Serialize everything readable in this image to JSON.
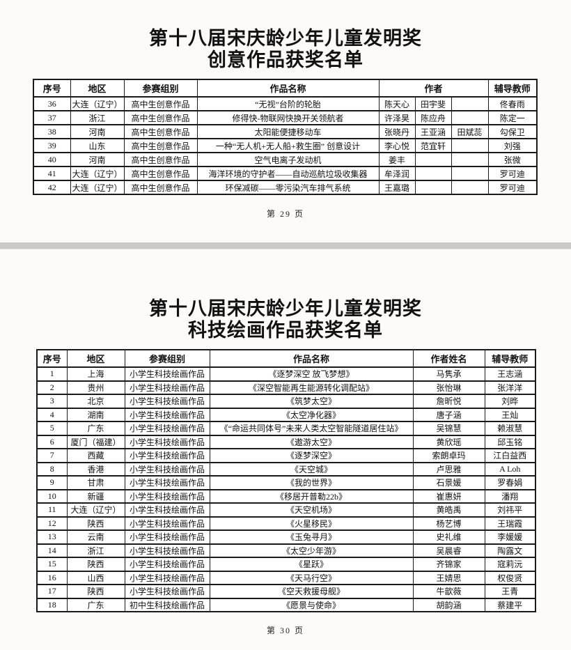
{
  "colors": {
    "page_background": "#fbfaf8",
    "divider": "#c9c9c9",
    "table_border": "#1a1a1a",
    "text": "#111111"
  },
  "page1": {
    "title_line1": "第十八届宋庆龄少年儿童发明奖",
    "title_line2": "创意作品获奖名单",
    "footer": "第 29 页",
    "table": {
      "headers": {
        "index": "序号",
        "region": "地区",
        "group": "参赛组别",
        "work": "作品名称",
        "authors": "作者",
        "teacher": "辅导教师"
      },
      "rows": [
        [
          "36",
          "大连（辽宁）",
          "高中生创意作品",
          "“无视”台阶的轮胎",
          "陈天心",
          "田宇斐",
          "",
          "佟春雨"
        ],
        [
          "37",
          "浙江",
          "高中生创意作品",
          "修得快-物联网快换开关领航者",
          "许泽昊",
          "陈应舟",
          "",
          "陈定一"
        ],
        [
          "38",
          "河南",
          "高中生创意作品",
          "太阳能便捷移动车",
          "张晓丹",
          "王亚涵",
          "田斌蕊",
          "勾保卫"
        ],
        [
          "39",
          "山东",
          "高中生创意作品",
          "一种“无人机+无人船+救生圈” 创意设计",
          "李心悦",
          "范宜轩",
          "",
          "刘强"
        ],
        [
          "40",
          "河南",
          "高中生创意作品",
          "空气电离子发动机",
          "姜丰",
          "",
          "",
          "张微"
        ],
        [
          "41",
          "大连（辽宁）",
          "高中生创意作品",
          "海洋环境的守护者——自动巡航垃圾收集器",
          "牟泽润",
          "",
          "",
          "罗可迪"
        ],
        [
          "42",
          "大连（辽宁）",
          "高中生创意作品",
          "环保减碳——零污染汽车排气系统",
          "王嘉璐",
          "",
          "",
          "罗可迪"
        ]
      ]
    }
  },
  "page2": {
    "title_line1": "第十八届宋庆龄少年儿童发明奖",
    "title_line2": "科技绘画作品获奖名单",
    "footer": "第 30 页",
    "table": {
      "headers": {
        "index": "序号",
        "region": "地区",
        "group": "参赛组别",
        "work": "作品名称",
        "author": "作者姓名",
        "teacher": "辅导教师"
      },
      "rows": [
        [
          "1",
          "上海",
          "小学生科技绘画作品",
          "《逐梦深空 放飞梦想》",
          "马隽承",
          "王志涵"
        ],
        [
          "2",
          "贵州",
          "小学生科技绘画作品",
          "《深空智能再生能源转化调配站》",
          "张怡琳",
          "张洋洋"
        ],
        [
          "3",
          "北京",
          "小学生科技绘画作品",
          "《筑梦太空》",
          "詹昕悦",
          "刘晔"
        ],
        [
          "4",
          "湖南",
          "小学生科技绘画作品",
          "《太空净化器》",
          "唐子涵",
          "王灿"
        ],
        [
          "5",
          "广东",
          "小学生科技绘画作品",
          "《“命运共同体号”未来人类太空智能隧道居住站》",
          "吴锦慧",
          "赖淑慧"
        ],
        [
          "6",
          "厦门（福建）",
          "小学生科技绘画作品",
          "《遨游太空》",
          "黄欣瑶",
          "邱玉铭"
        ],
        [
          "7",
          "西藏",
          "小学生科技绘画作品",
          "《逐梦深空》",
          "索朗卓玛",
          "江白益西"
        ],
        [
          "8",
          "香港",
          "小学生科技绘画作品",
          "《天空城》",
          "卢思雅",
          "A Loh"
        ],
        [
          "9",
          "甘肃",
          "小学生科技绘画作品",
          "《我的世界》",
          "石景媛",
          "罗春娟"
        ],
        [
          "10",
          "新疆",
          "小学生科技绘画作品",
          "《移居开普勒22b》",
          "崔惠妍",
          "潘翔"
        ],
        [
          "11",
          "大连（辽宁）",
          "小学生科技绘画作品",
          "《天空机场》",
          "黄皓禹",
          "刘祎平"
        ],
        [
          "12",
          "陕西",
          "小学生科技绘画作品",
          "《火星移民》",
          "杨艺博",
          "王瑞霞"
        ],
        [
          "13",
          "云南",
          "小学生科技绘画作品",
          "《玉兔寻月》",
          "史礼维",
          "李媛媛"
        ],
        [
          "14",
          "浙江",
          "小学生科技绘画作品",
          "《太空少年游》",
          "吴晨睿",
          "陶露文"
        ],
        [
          "15",
          "陕西",
          "小学生科技绘画作品",
          "《星跃》",
          "齐锦家",
          "寇莉沅"
        ],
        [
          "16",
          "山西",
          "小学生科技绘画作品",
          "《天马行空》",
          "王婧思",
          "权俊贤"
        ],
        [
          "17",
          "陕西",
          "小学生科技绘画作品",
          "《空天救援母舰》",
          "牛歆薇",
          "王青"
        ],
        [
          "18",
          "广东",
          "初中生科技绘画作品",
          "《愿景与使命》",
          "胡韵涵",
          "蔡建平"
        ]
      ]
    }
  }
}
